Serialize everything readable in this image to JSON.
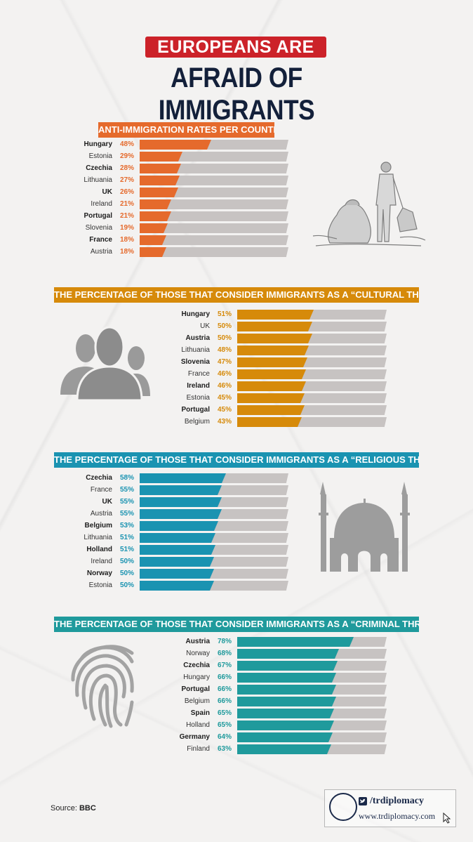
{
  "header": {
    "line1": "EUROPEANS ARE",
    "line2": "AFRAID OF IMMIGRANTS"
  },
  "chart_data": [
    {
      "type": "bar",
      "title": "ANTI-IMMIGRATION RATES PER COUNTRY",
      "color": "#e56a2c",
      "header_color": "#e56a2c",
      "bold_every_other": true,
      "xlim": [
        0,
        100
      ],
      "categories": [
        "Hungary",
        "Estonia",
        "Czechia",
        "Lithuania",
        "UK",
        "Ireland",
        "Portugal",
        "Slovenia",
        "France",
        "Austria"
      ],
      "values": [
        48,
        29,
        28,
        27,
        26,
        21,
        21,
        19,
        18,
        18
      ],
      "labels": [
        "48%",
        "29%",
        "28%",
        "27%",
        "26%",
        "21%",
        "21%",
        "19%",
        "18%",
        "18%"
      ],
      "icon": "refugees-sketch-icon"
    },
    {
      "type": "bar",
      "title": "THE PERCENTAGE OF THOSE THAT CONSIDER IMMIGRANTS AS A “CULTURAL THREAT”",
      "color": "#d68a0a",
      "header_color": "#d68a0a",
      "bold_every_other": true,
      "xlim": [
        0,
        100
      ],
      "categories": [
        "Hungary",
        "UK",
        "Austria",
        "Lithuania",
        "Slovenia",
        "France",
        "Ireland",
        "Estonia",
        "Portugal",
        "Belgium"
      ],
      "values": [
        51,
        50,
        50,
        48,
        47,
        46,
        46,
        45,
        45,
        43
      ],
      "labels": [
        "51%",
        "50%",
        "50%",
        "48%",
        "47%",
        "46%",
        "46%",
        "45%",
        "45%",
        "43%"
      ],
      "icon": "people-group-icon"
    },
    {
      "type": "bar",
      "title": "THE PERCENTAGE OF THOSE THAT CONSIDER IMMIGRANTS AS A “RELIGIOUS THREAT”",
      "color": "#1a93b1",
      "header_color": "#1a93b1",
      "bold_every_other": true,
      "xlim": [
        0,
        100
      ],
      "categories": [
        "Czechia",
        "France",
        "UK",
        "Austria",
        "Belgium",
        "Lithuania",
        "Holland",
        "Ireland",
        "Norway",
        "Estonia"
      ],
      "values": [
        58,
        55,
        55,
        55,
        53,
        51,
        51,
        50,
        50,
        50
      ],
      "labels": [
        "58%",
        "55%",
        "55%",
        "55%",
        "53%",
        "51%",
        "51%",
        "50%",
        "50%",
        "50%"
      ],
      "icon": "mosque-icon"
    },
    {
      "type": "bar",
      "title": "THE PERCENTAGE OF THOSE THAT CONSIDER IMMIGRANTS AS A “CRIMINAL THREAT”",
      "color": "#1f9a9c",
      "header_color": "#1f9a9c",
      "bold_every_other": true,
      "xlim": [
        0,
        100
      ],
      "categories": [
        "Austria",
        "Norway",
        "Czechia",
        "Hungary",
        "Portugal",
        "Belgium",
        "Spain",
        "Holland",
        "Germany",
        "Finland"
      ],
      "values": [
        78,
        68,
        67,
        66,
        66,
        66,
        65,
        65,
        64,
        63
      ],
      "labels": [
        "78%",
        "68%",
        "67%",
        "66%",
        "66%",
        "66%",
        "65%",
        "65%",
        "64%",
        "63%"
      ],
      "icon": "fingerprint-icon"
    }
  ],
  "footer": {
    "source_label": "Source:",
    "source_value": "BBC",
    "handle": "/trdiplomacy",
    "url": "www.trdiplomacy.com",
    "icons": [
      "twitter-icon",
      "facebook-icon",
      "trdiplomacy-logo-icon",
      "cursor-icon"
    ]
  }
}
